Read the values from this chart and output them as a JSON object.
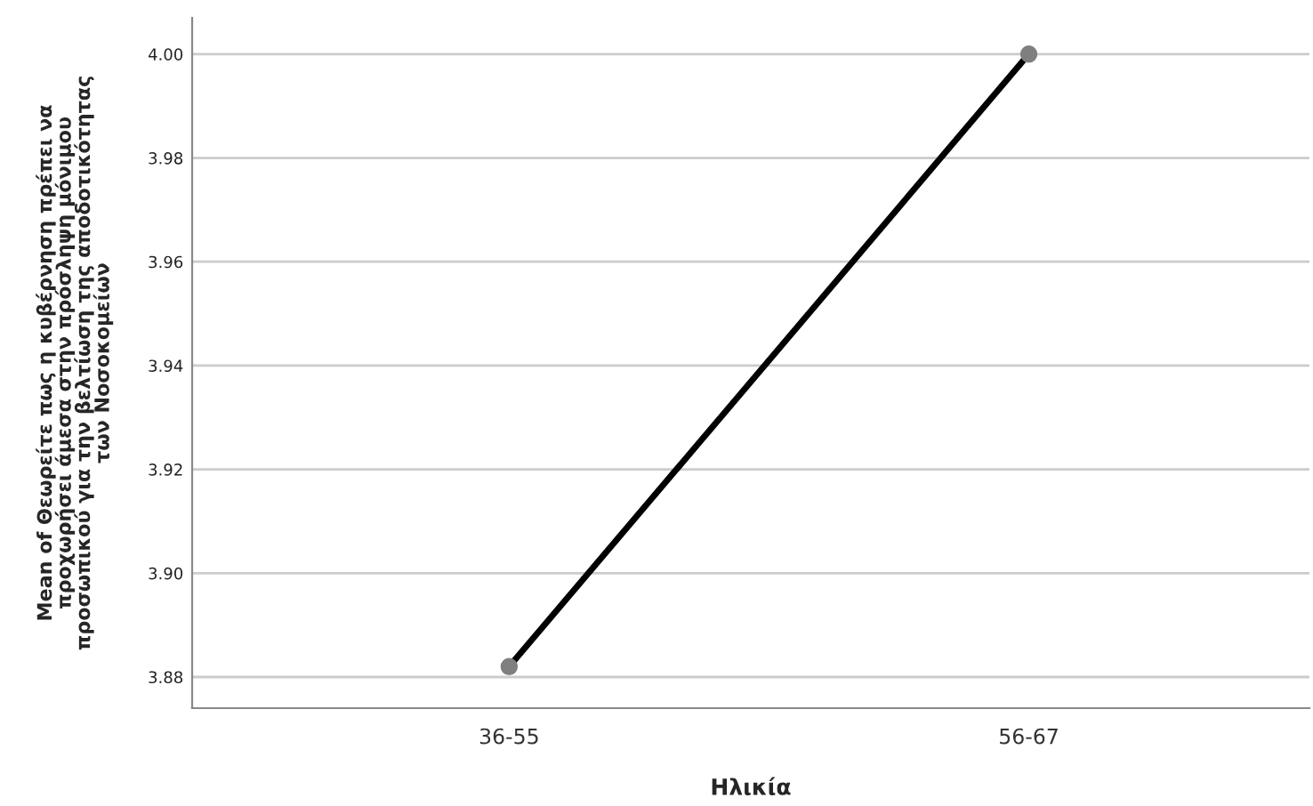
{
  "chart_data": {
    "type": "line",
    "xlabel": "Ηλικία",
    "ylabel": "Mean of Θεωρείτε πως η κυβέρνηση πρέπει να\nπροχωρήσει άμεσα στην πρόσληψη μόνιμου\nπροσωπικού για την βελτίωση της αποδοτικότητας\nτων Νοσοκομείων",
    "categories": [
      "36-55",
      "56-67"
    ],
    "series": [
      {
        "color": "#000000",
        "values": [
          3.882,
          4.0
        ]
      }
    ],
    "ylim": [
      3.874,
      4.007
    ],
    "yticks": [
      {
        "value": 3.88,
        "label": "3.88"
      },
      {
        "value": 3.9,
        "label": "3.90"
      },
      {
        "value": 3.92,
        "label": "3.92"
      },
      {
        "value": 3.94,
        "label": "3.94"
      },
      {
        "value": 3.96,
        "label": "3.96"
      },
      {
        "value": 3.98,
        "label": "3.98"
      },
      {
        "value": 4.0,
        "label": "4.00"
      }
    ],
    "grid": "y",
    "marker": "circle",
    "line_style": "solid"
  }
}
